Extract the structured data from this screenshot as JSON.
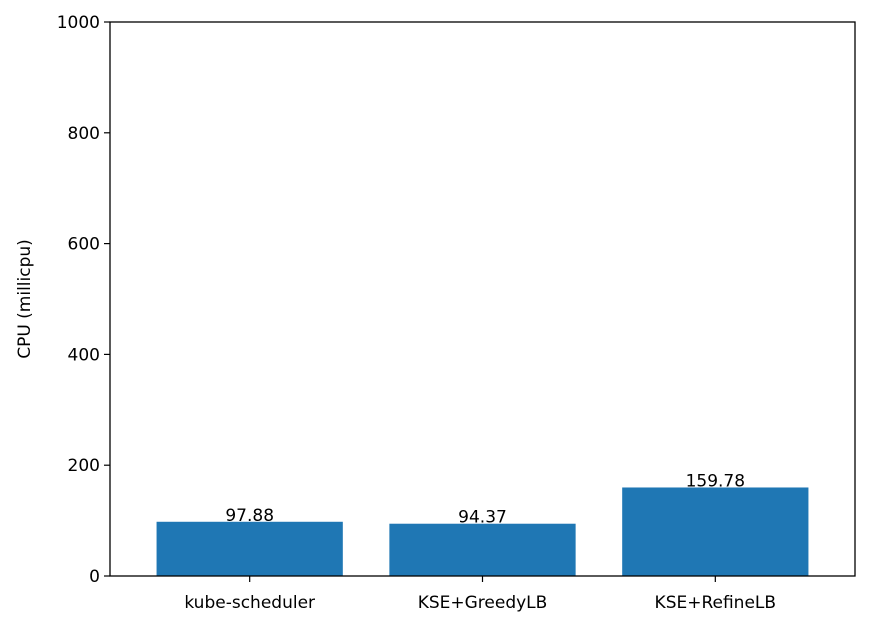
{
  "chart_data": {
    "type": "bar",
    "title": "",
    "xlabel": "",
    "ylabel": "CPU (millicpu)",
    "categories": [
      "kube-scheduler",
      "KSE+GreedyLB",
      "KSE+RefineLB"
    ],
    "values": [
      97.88,
      94.37,
      159.78
    ],
    "value_labels": [
      "97.88",
      "94.37",
      "159.78"
    ],
    "ylim": [
      0,
      1000
    ],
    "yticks": [
      0,
      200,
      400,
      600,
      800,
      1000
    ],
    "grid": false,
    "legend": "none",
    "bar_color": "#1f77b4"
  }
}
